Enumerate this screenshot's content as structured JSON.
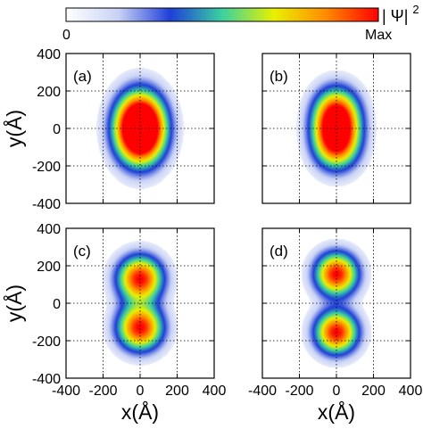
{
  "colorbar": {
    "label": "| Ψ| ",
    "label_superscript": "2",
    "min_label": "0",
    "max_label": "Max",
    "stops": [
      "#ffffff",
      "#c9d2f5",
      "#1f3fd8",
      "#3ad1a0",
      "#eaf000",
      "#ff8a00",
      "#ff0000"
    ]
  },
  "chart_data": [
    {
      "type": "heatmap",
      "panel_label": "(a)",
      "xlabel": "",
      "ylabel": "y(Å)",
      "xlim": [
        -400,
        400
      ],
      "ylim": [
        -400,
        400
      ],
      "x_ticks": [],
      "y_ticks": [
        "400",
        "200",
        "0",
        "-200",
        "-400"
      ],
      "grid": true,
      "lobes": [
        {
          "x": 0,
          "y": 40,
          "sx": 85,
          "sy": 110,
          "amp": 1.0
        },
        {
          "x": 0,
          "y": -40,
          "sx": 85,
          "sy": 110,
          "amp": 1.0
        }
      ]
    },
    {
      "type": "heatmap",
      "panel_label": "(b)",
      "xlabel": "",
      "ylabel": "",
      "xlim": [
        -400,
        400
      ],
      "ylim": [
        -400,
        400
      ],
      "x_ticks": [],
      "y_ticks": [],
      "grid": true,
      "lobes": [
        {
          "x": 0,
          "y": 70,
          "sx": 80,
          "sy": 95,
          "amp": 1.0
        },
        {
          "x": 0,
          "y": -70,
          "sx": 80,
          "sy": 95,
          "amp": 1.0
        }
      ]
    },
    {
      "type": "heatmap",
      "panel_label": "(c)",
      "xlabel": "x(Å)",
      "ylabel": "y(Å)",
      "xlim": [
        -400,
        400
      ],
      "ylim": [
        -400,
        400
      ],
      "x_ticks": [
        "-400",
        "-200",
        "0",
        "200",
        "400"
      ],
      "y_ticks": [
        "400",
        "200",
        "0",
        "-200",
        "-400"
      ],
      "grid": true,
      "lobes": [
        {
          "x": 0,
          "y": 130,
          "sx": 80,
          "sy": 80,
          "amp": 1.0
        },
        {
          "x": 0,
          "y": -130,
          "sx": 80,
          "sy": 80,
          "amp": 1.0
        }
      ]
    },
    {
      "type": "heatmap",
      "panel_label": "(d)",
      "xlabel": "x(Å)",
      "ylabel": "",
      "xlim": [
        -400,
        400
      ],
      "ylim": [
        -400,
        400
      ],
      "x_ticks": [
        "-400",
        "-200",
        "0",
        "200",
        "400"
      ],
      "y_ticks": [],
      "grid": true,
      "lobes": [
        {
          "x": 0,
          "y": 155,
          "sx": 75,
          "sy": 75,
          "amp": 1.0
        },
        {
          "x": 0,
          "y": -155,
          "sx": 75,
          "sy": 75,
          "amp": 1.0
        }
      ]
    }
  ]
}
